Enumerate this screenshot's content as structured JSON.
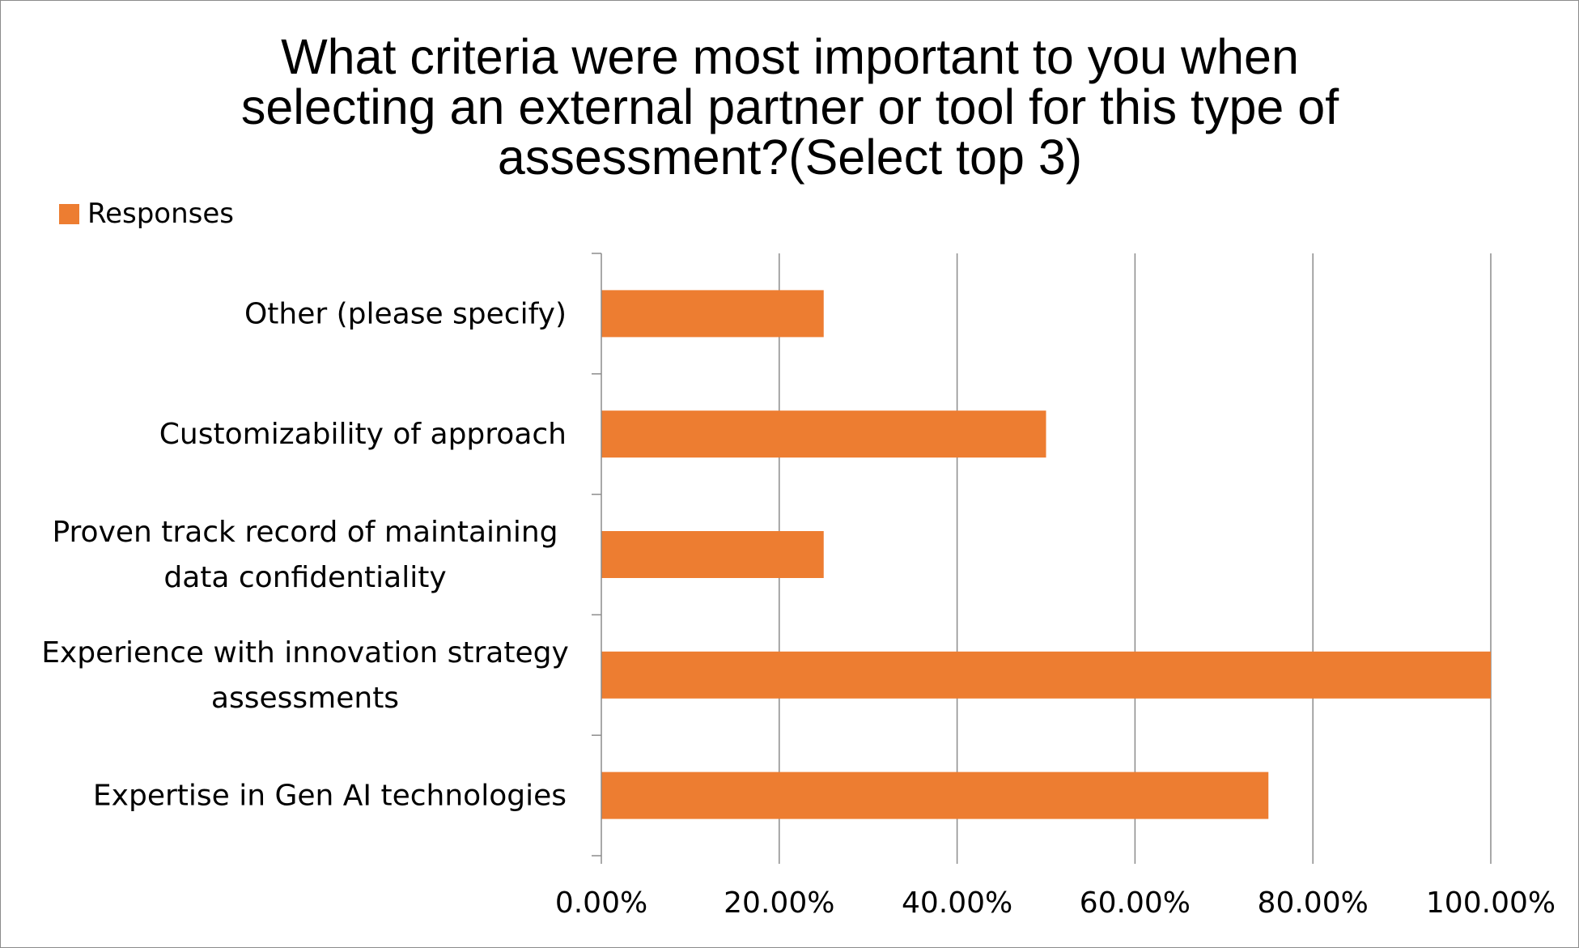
{
  "chart_data": {
    "type": "bar",
    "orientation": "horizontal",
    "title_lines": [
      "What criteria were most important to you when",
      "selecting an external partner or tool for this type of",
      "assessment?(Select top 3)"
    ],
    "categories": [
      [
        "Other (please specify)"
      ],
      [
        "Customizability of approach"
      ],
      [
        "Proven track record of maintaining",
        "data confidentiality"
      ],
      [
        "Experience with innovation strategy",
        "assessments"
      ],
      [
        "Expertise in Gen AI technologies"
      ]
    ],
    "series": [
      {
        "name": "Responses",
        "values": [
          25,
          50,
          25,
          100,
          75
        ]
      }
    ],
    "xlim": [
      0,
      100
    ],
    "x_ticks": [
      0,
      20,
      40,
      60,
      80,
      100
    ],
    "x_tick_labels": [
      "0.00%",
      "20.00%",
      "40.00%",
      "60.00%",
      "80.00%",
      "100.00%"
    ],
    "grid": "vertical",
    "legend_position": "top-left",
    "colors": {
      "bar": "#ED7D31",
      "grid": "#8c8c8c",
      "axis": "#8c8c8c"
    }
  }
}
